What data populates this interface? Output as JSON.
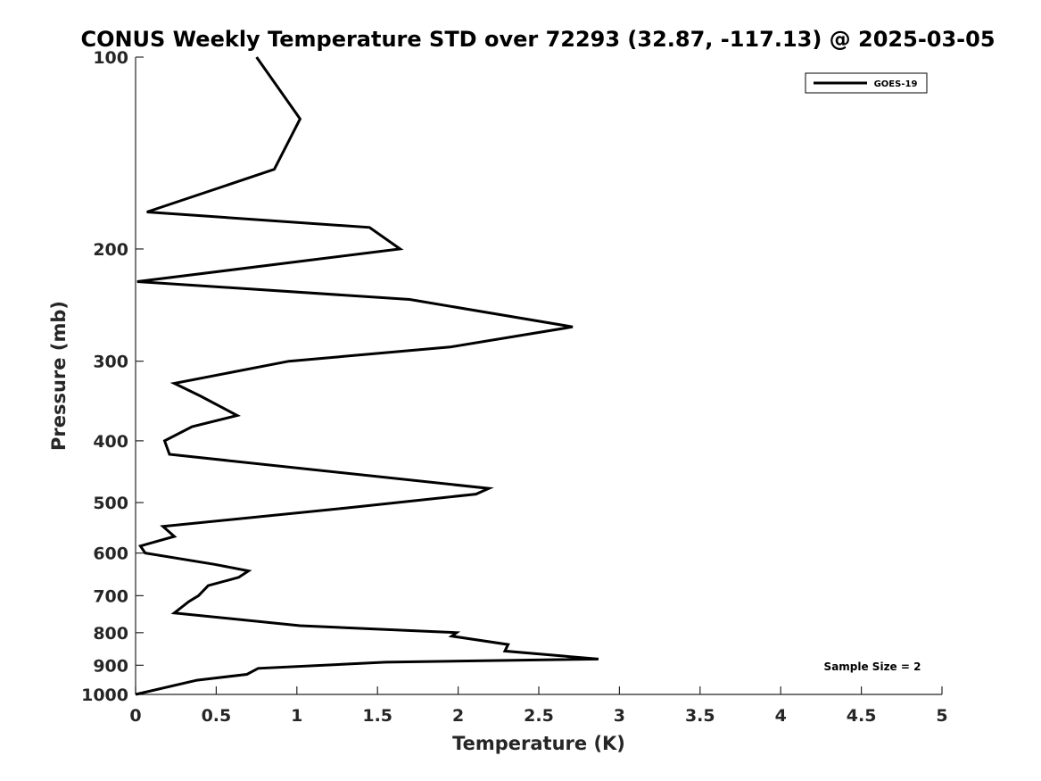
{
  "chart_data": {
    "type": "line",
    "title": "CONUS Weekly Temperature STD over 72293 (32.87, -117.13) @ 2025-03-05",
    "xlabel": "Temperature (K)",
    "ylabel": "Pressure (mb)",
    "xlim": [
      0,
      5
    ],
    "ylim": [
      100,
      1000
    ],
    "y_scale": "log",
    "y_reversed": true,
    "grid": false,
    "legend_position": "top-right",
    "x_ticks": [
      0,
      0.5,
      1,
      1.5,
      2,
      2.5,
      3,
      3.5,
      4,
      4.5,
      5
    ],
    "x_tick_labels": [
      "0",
      "0.5",
      "1",
      "1.5",
      "2",
      "2.5",
      "3",
      "3.5",
      "4",
      "4.5",
      "5"
    ],
    "y_ticks": [
      100,
      200,
      300,
      400,
      500,
      600,
      700,
      800,
      900,
      1000
    ],
    "y_tick_labels": [
      "100",
      "200",
      "300",
      "400",
      "500",
      "600",
      "700",
      "800",
      "900",
      "1000"
    ],
    "series": [
      {
        "name": "GOES-19",
        "color": "#000000",
        "points": [
          [
            0.75,
            100
          ],
          [
            1.02,
            125
          ],
          [
            0.86,
            150
          ],
          [
            0.07,
            175
          ],
          [
            1.45,
            185
          ],
          [
            1.64,
            200
          ],
          [
            0.01,
            225
          ],
          [
            1.7,
            240
          ],
          [
            2.71,
            265
          ],
          [
            1.95,
            285
          ],
          [
            0.95,
            300
          ],
          [
            0.24,
            325
          ],
          [
            0.4,
            340
          ],
          [
            0.63,
            365
          ],
          [
            0.35,
            380
          ],
          [
            0.18,
            400
          ],
          [
            0.21,
            420
          ],
          [
            2.19,
            475
          ],
          [
            2.11,
            485
          ],
          [
            1.3,
            510
          ],
          [
            0.17,
            545
          ],
          [
            0.24,
            565
          ],
          [
            0.03,
            585
          ],
          [
            0.06,
            600
          ],
          [
            0.49,
            625
          ],
          [
            0.7,
            640
          ],
          [
            0.64,
            655
          ],
          [
            0.45,
            675
          ],
          [
            0.39,
            700
          ],
          [
            0.33,
            715
          ],
          [
            0.24,
            745
          ],
          [
            1.02,
            780
          ],
          [
            1.99,
            800
          ],
          [
            1.96,
            810
          ],
          [
            2.31,
            835
          ],
          [
            2.29,
            855
          ],
          [
            2.87,
            880
          ],
          [
            1.55,
            890
          ],
          [
            0.76,
            910
          ],
          [
            0.69,
            930
          ],
          [
            0.38,
            950
          ],
          [
            0.0,
            1000
          ]
        ]
      }
    ],
    "annotation": "Sample Size = 2"
  }
}
